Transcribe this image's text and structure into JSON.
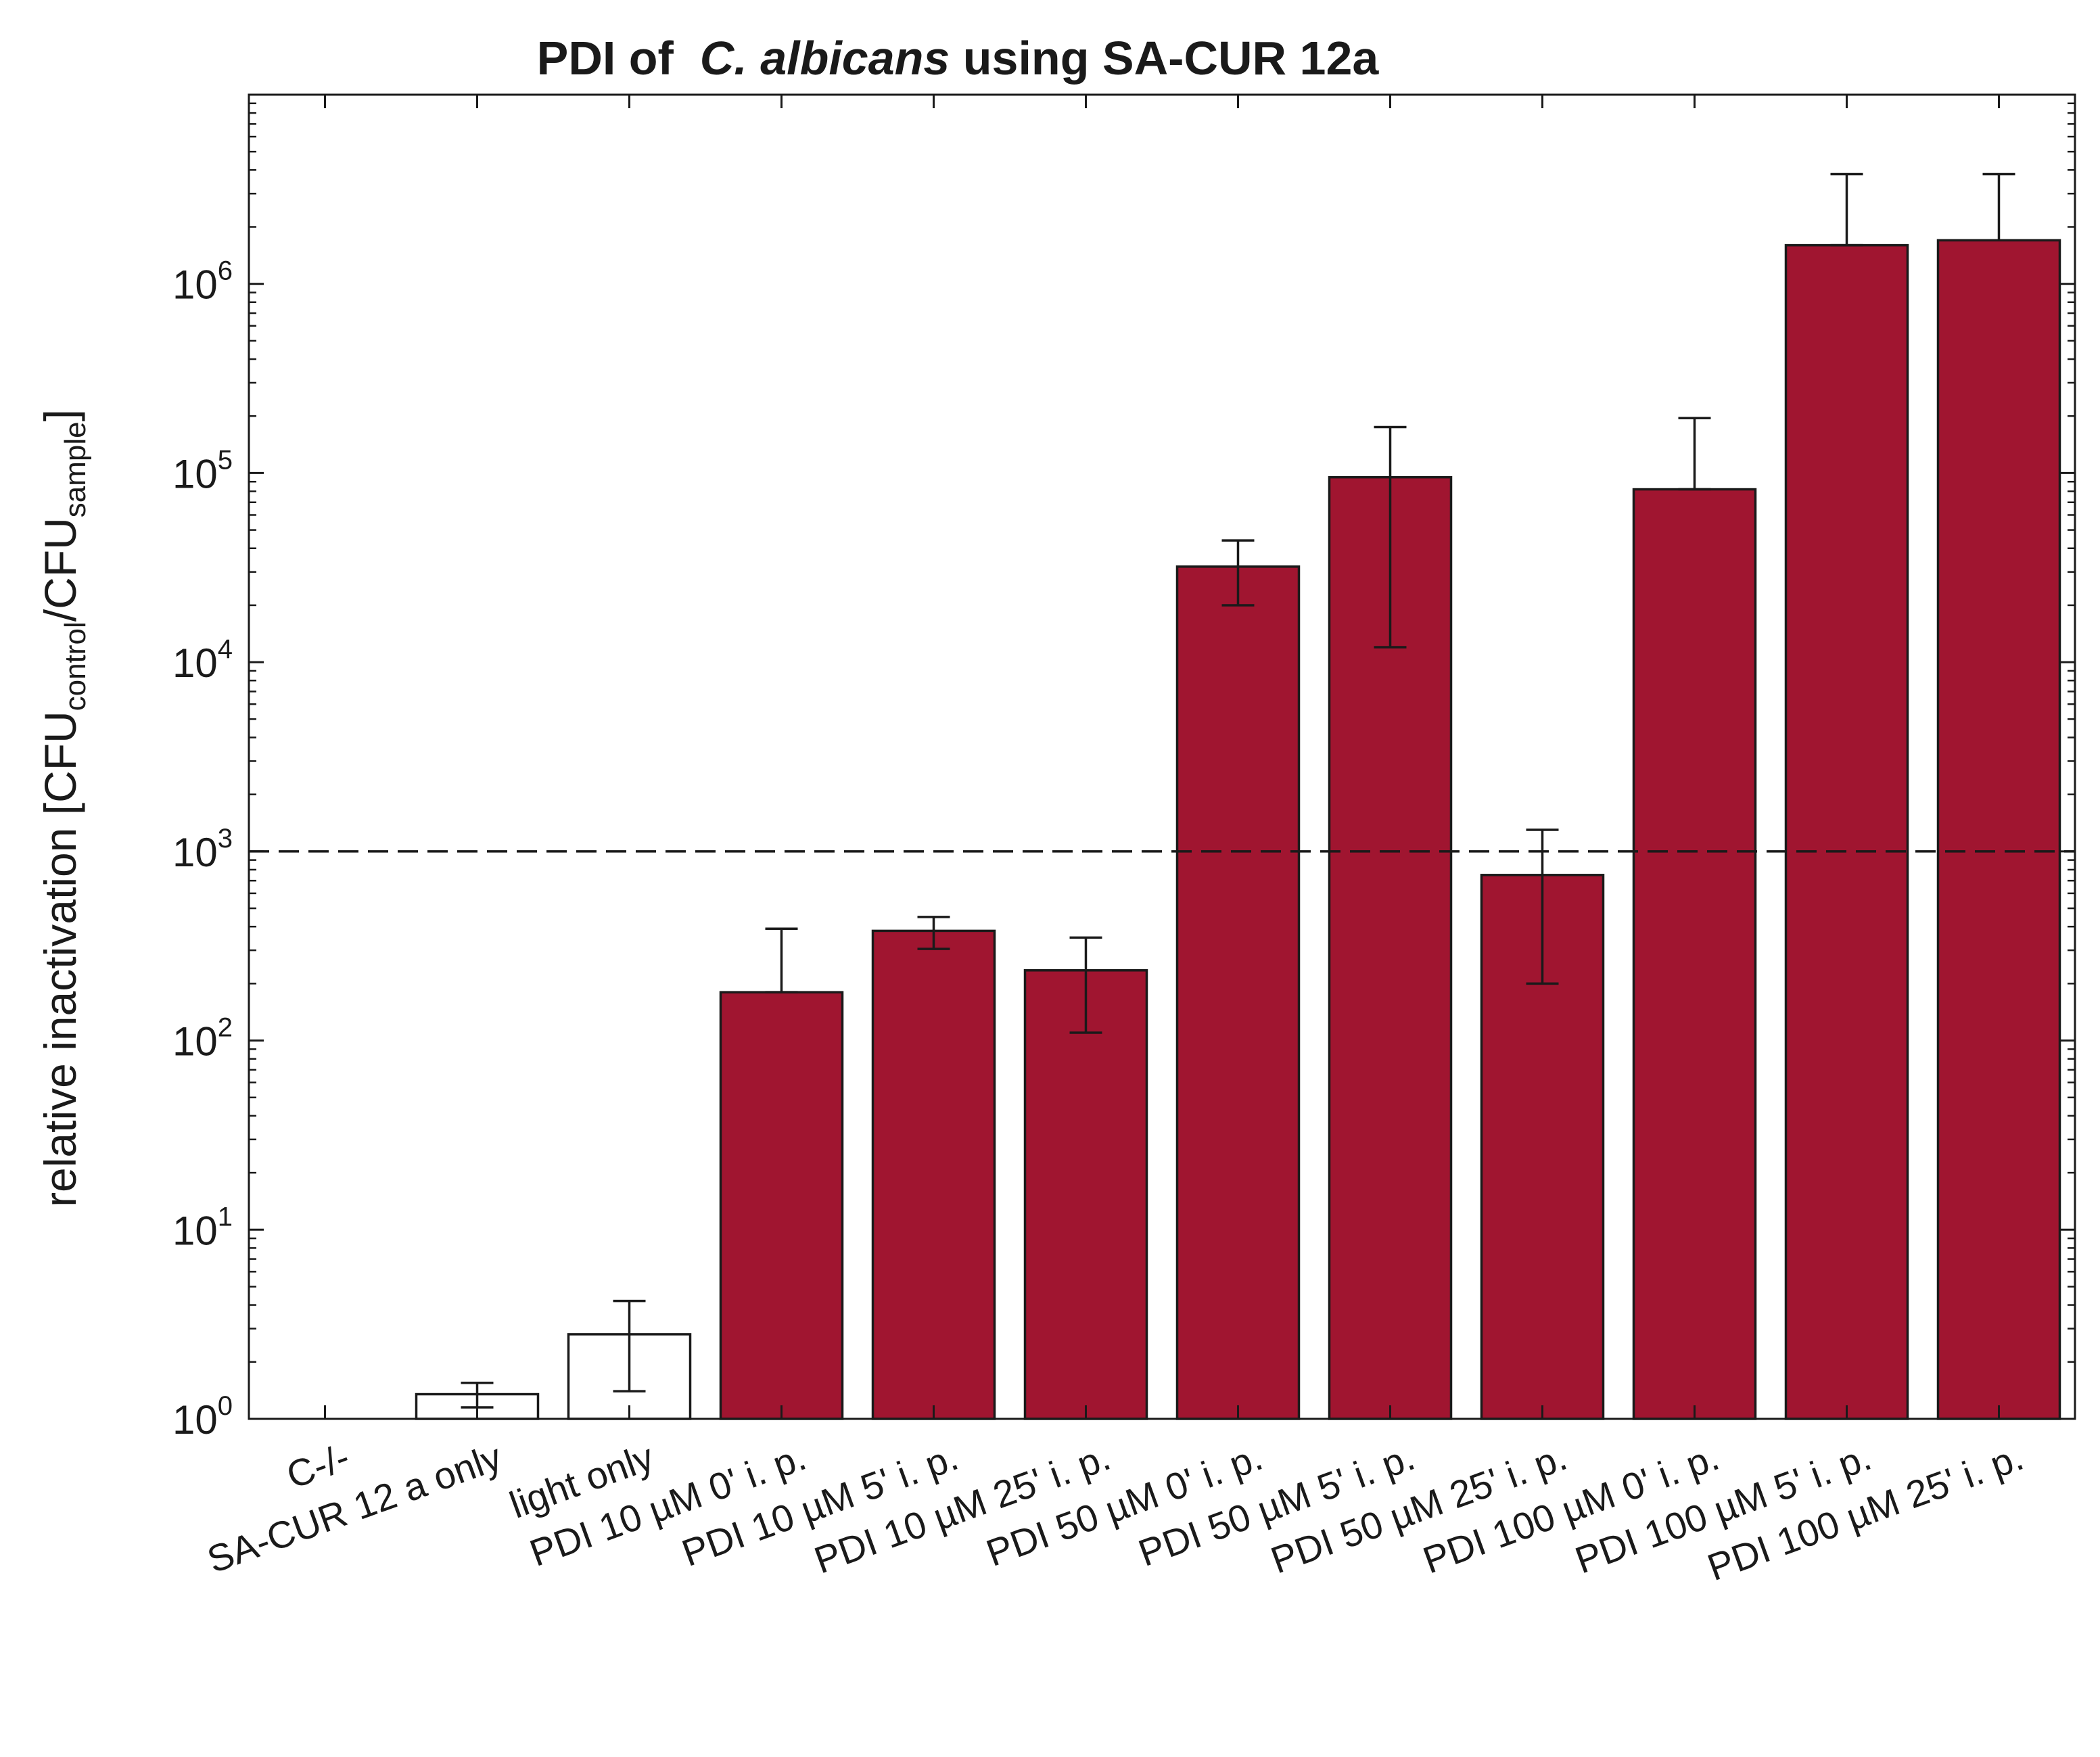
{
  "chart_data": {
    "type": "bar",
    "title": {
      "prefix": "PDI of  ",
      "italic": "C. albicans",
      "suffix": " using SA-CUR 12a"
    },
    "ylabel": {
      "main": "relative inactivation [CFU",
      "sub1": "control",
      "mid": "/CFU",
      "sub2": "sample",
      "end": "]"
    },
    "yscale": "log",
    "ylim": [
      1,
      10000000
    ],
    "yticks": [
      {
        "base": "10",
        "exp": "0",
        "value": 1
      },
      {
        "base": "10",
        "exp": "1",
        "value": 10
      },
      {
        "base": "10",
        "exp": "2",
        "value": 100
      },
      {
        "base": "10",
        "exp": "3",
        "value": 1000
      },
      {
        "base": "10",
        "exp": "4",
        "value": 10000
      },
      {
        "base": "10",
        "exp": "5",
        "value": 100000
      },
      {
        "base": "10",
        "exp": "6",
        "value": 1000000
      }
    ],
    "threshold": 1000,
    "categories": [
      "C-/-",
      "SA-CUR 12 a only",
      "light only",
      "PDI 10 µM 0' i. p.",
      "PDI 10 µM 5' i. p.",
      "PDI 10 µM 25' i. p.",
      "PDI 50 µM 0' i. p.",
      "PDI 50 µM 5' i. p.",
      "PDI 50 µM 25' i. p.",
      "PDI 100 µM 0' i. p.",
      "PDI 100 µM 5' i. p.",
      "PDI 100 µM 25' i. p."
    ],
    "values": [
      1,
      1.35,
      2.8,
      180,
      380,
      235,
      32000,
      95000,
      750,
      82000,
      1600000,
      1700000
    ],
    "err_low": [
      1,
      1.15,
      1.4,
      180,
      305,
      110,
      20000,
      12000,
      200,
      82000,
      1600000,
      1700000
    ],
    "err_high": [
      1,
      1.55,
      4.2,
      390,
      450,
      350,
      44000,
      175000,
      1300,
      195000,
      3800000,
      3800000
    ],
    "fill": [
      "#ffffff",
      "#ffffff",
      "#ffffff",
      "#a01530",
      "#a01530",
      "#a01530",
      "#a01530",
      "#a01530",
      "#a01530",
      "#a01530",
      "#a01530",
      "#a01530"
    ],
    "edge_color": "#1a1a1a"
  }
}
